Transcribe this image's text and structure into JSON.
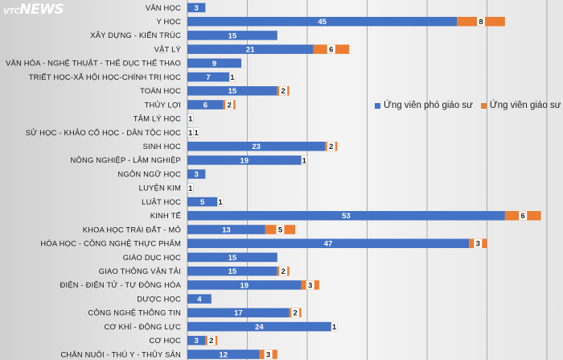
{
  "watermark": {
    "prefix": "VTC",
    "name": "NEWS"
  },
  "colors": {
    "pgs": "#4472c4",
    "gs": "#ed7d31",
    "grid": "#9a9a9a"
  },
  "chart_data": {
    "type": "bar",
    "orientation": "horizontal",
    "stacked": true,
    "title": "",
    "xlabel": "",
    "ylabel": "",
    "xlim": [
      0,
      60
    ],
    "grid": true,
    "legend_position": "right",
    "categories": [
      "VĂN HỌC",
      "Y HỌC",
      "XÂY DỰNG - KIẾN TRÚC",
      "VẬT LÝ",
      "VĂN HÓA - NGHỆ THUẬT - THỂ DỤC THỂ THAO",
      "TRIẾT HỌC-XÃ HỘI HỌC-CHÍNH TRỊ HỌC",
      "TOÁN HỌC",
      "THỦY LỢI",
      "TÂM LÝ HỌC",
      "SỬ HỌC - KHẢO CỔ HỌC - DÂN TỘC HỌC",
      "SINH HỌC",
      "NÔNG NGHIỆP - LÂM NGHIỆP",
      "NGÔN NGỮ HỌC",
      "LUYỆN KIM",
      "LUẬT HỌC",
      "KINH TẾ",
      "KHOA HỌC TRÁI ĐẤT - MỎ",
      "HÓA HỌC - CÔNG NGHỆ THỰC PHẨM",
      "GIÁO DỤC HỌC",
      "GIAO THÔNG VẬN TẢI",
      "ĐIỆN - ĐIỆN TỬ - TỰ ĐỘNG HÓA",
      "DƯỢC HỌC",
      "CÔNG NGHỆ THÔNG TIN",
      "CƠ KHÍ - ĐỘNG LỰC",
      "CƠ HỌC",
      "CHĂN NUÔI - THÚ Y - THỦY SẢN"
    ],
    "series": [
      {
        "name": "Ứng viên phó giáo sư",
        "color": "#4472c4",
        "values": [
          3,
          45,
          15,
          21,
          9,
          7,
          15,
          6,
          1,
          1,
          23,
          19,
          3,
          1,
          5,
          53,
          13,
          47,
          15,
          15,
          19,
          4,
          17,
          24,
          3,
          12
        ]
      },
      {
        "name": "Ứng viên giáo sư",
        "color": "#ed7d31",
        "values": [
          null,
          8,
          null,
          6,
          null,
          1,
          2,
          2,
          null,
          1,
          2,
          1,
          null,
          null,
          1,
          6,
          5,
          3,
          null,
          2,
          3,
          null,
          2,
          1,
          2,
          3
        ]
      }
    ]
  }
}
